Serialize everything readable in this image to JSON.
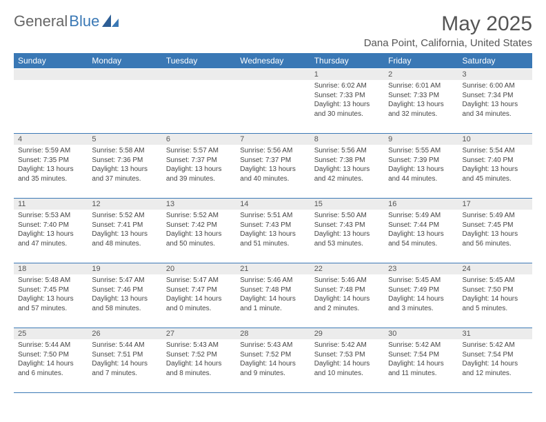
{
  "brand": {
    "part1": "General",
    "part2": "Blue"
  },
  "header": {
    "title": "May 2025",
    "location": "Dana Point, California, United States"
  },
  "style": {
    "accent_color": "#3a78b5",
    "header_bg": "#3a78b5",
    "header_text_color": "#ffffff",
    "daynum_bg": "#ececec",
    "body_text_color": "#444444",
    "table_border_color": "#3a78b5",
    "background_color": "#ffffff",
    "font_family": "Arial",
    "title_fontsize": 30,
    "location_fontsize": 15,
    "cell_fontsize": 10
  },
  "day_labels": [
    "Sunday",
    "Monday",
    "Tuesday",
    "Wednesday",
    "Thursday",
    "Friday",
    "Saturday"
  ],
  "weeks": [
    [
      {
        "n": "",
        "sunrise": "",
        "sunset": "",
        "daylight": ""
      },
      {
        "n": "",
        "sunrise": "",
        "sunset": "",
        "daylight": ""
      },
      {
        "n": "",
        "sunrise": "",
        "sunset": "",
        "daylight": ""
      },
      {
        "n": "",
        "sunrise": "",
        "sunset": "",
        "daylight": ""
      },
      {
        "n": "1",
        "sunrise": "Sunrise: 6:02 AM",
        "sunset": "Sunset: 7:33 PM",
        "daylight": "Daylight: 13 hours and 30 minutes."
      },
      {
        "n": "2",
        "sunrise": "Sunrise: 6:01 AM",
        "sunset": "Sunset: 7:33 PM",
        "daylight": "Daylight: 13 hours and 32 minutes."
      },
      {
        "n": "3",
        "sunrise": "Sunrise: 6:00 AM",
        "sunset": "Sunset: 7:34 PM",
        "daylight": "Daylight: 13 hours and 34 minutes."
      }
    ],
    [
      {
        "n": "4",
        "sunrise": "Sunrise: 5:59 AM",
        "sunset": "Sunset: 7:35 PM",
        "daylight": "Daylight: 13 hours and 35 minutes."
      },
      {
        "n": "5",
        "sunrise": "Sunrise: 5:58 AM",
        "sunset": "Sunset: 7:36 PM",
        "daylight": "Daylight: 13 hours and 37 minutes."
      },
      {
        "n": "6",
        "sunrise": "Sunrise: 5:57 AM",
        "sunset": "Sunset: 7:37 PM",
        "daylight": "Daylight: 13 hours and 39 minutes."
      },
      {
        "n": "7",
        "sunrise": "Sunrise: 5:56 AM",
        "sunset": "Sunset: 7:37 PM",
        "daylight": "Daylight: 13 hours and 40 minutes."
      },
      {
        "n": "8",
        "sunrise": "Sunrise: 5:56 AM",
        "sunset": "Sunset: 7:38 PM",
        "daylight": "Daylight: 13 hours and 42 minutes."
      },
      {
        "n": "9",
        "sunrise": "Sunrise: 5:55 AM",
        "sunset": "Sunset: 7:39 PM",
        "daylight": "Daylight: 13 hours and 44 minutes."
      },
      {
        "n": "10",
        "sunrise": "Sunrise: 5:54 AM",
        "sunset": "Sunset: 7:40 PM",
        "daylight": "Daylight: 13 hours and 45 minutes."
      }
    ],
    [
      {
        "n": "11",
        "sunrise": "Sunrise: 5:53 AM",
        "sunset": "Sunset: 7:40 PM",
        "daylight": "Daylight: 13 hours and 47 minutes."
      },
      {
        "n": "12",
        "sunrise": "Sunrise: 5:52 AM",
        "sunset": "Sunset: 7:41 PM",
        "daylight": "Daylight: 13 hours and 48 minutes."
      },
      {
        "n": "13",
        "sunrise": "Sunrise: 5:52 AM",
        "sunset": "Sunset: 7:42 PM",
        "daylight": "Daylight: 13 hours and 50 minutes."
      },
      {
        "n": "14",
        "sunrise": "Sunrise: 5:51 AM",
        "sunset": "Sunset: 7:43 PM",
        "daylight": "Daylight: 13 hours and 51 minutes."
      },
      {
        "n": "15",
        "sunrise": "Sunrise: 5:50 AM",
        "sunset": "Sunset: 7:43 PM",
        "daylight": "Daylight: 13 hours and 53 minutes."
      },
      {
        "n": "16",
        "sunrise": "Sunrise: 5:49 AM",
        "sunset": "Sunset: 7:44 PM",
        "daylight": "Daylight: 13 hours and 54 minutes."
      },
      {
        "n": "17",
        "sunrise": "Sunrise: 5:49 AM",
        "sunset": "Sunset: 7:45 PM",
        "daylight": "Daylight: 13 hours and 56 minutes."
      }
    ],
    [
      {
        "n": "18",
        "sunrise": "Sunrise: 5:48 AM",
        "sunset": "Sunset: 7:45 PM",
        "daylight": "Daylight: 13 hours and 57 minutes."
      },
      {
        "n": "19",
        "sunrise": "Sunrise: 5:47 AM",
        "sunset": "Sunset: 7:46 PM",
        "daylight": "Daylight: 13 hours and 58 minutes."
      },
      {
        "n": "20",
        "sunrise": "Sunrise: 5:47 AM",
        "sunset": "Sunset: 7:47 PM",
        "daylight": "Daylight: 14 hours and 0 minutes."
      },
      {
        "n": "21",
        "sunrise": "Sunrise: 5:46 AM",
        "sunset": "Sunset: 7:48 PM",
        "daylight": "Daylight: 14 hours and 1 minute."
      },
      {
        "n": "22",
        "sunrise": "Sunrise: 5:46 AM",
        "sunset": "Sunset: 7:48 PM",
        "daylight": "Daylight: 14 hours and 2 minutes."
      },
      {
        "n": "23",
        "sunrise": "Sunrise: 5:45 AM",
        "sunset": "Sunset: 7:49 PM",
        "daylight": "Daylight: 14 hours and 3 minutes."
      },
      {
        "n": "24",
        "sunrise": "Sunrise: 5:45 AM",
        "sunset": "Sunset: 7:50 PM",
        "daylight": "Daylight: 14 hours and 5 minutes."
      }
    ],
    [
      {
        "n": "25",
        "sunrise": "Sunrise: 5:44 AM",
        "sunset": "Sunset: 7:50 PM",
        "daylight": "Daylight: 14 hours and 6 minutes."
      },
      {
        "n": "26",
        "sunrise": "Sunrise: 5:44 AM",
        "sunset": "Sunset: 7:51 PM",
        "daylight": "Daylight: 14 hours and 7 minutes."
      },
      {
        "n": "27",
        "sunrise": "Sunrise: 5:43 AM",
        "sunset": "Sunset: 7:52 PM",
        "daylight": "Daylight: 14 hours and 8 minutes."
      },
      {
        "n": "28",
        "sunrise": "Sunrise: 5:43 AM",
        "sunset": "Sunset: 7:52 PM",
        "daylight": "Daylight: 14 hours and 9 minutes."
      },
      {
        "n": "29",
        "sunrise": "Sunrise: 5:42 AM",
        "sunset": "Sunset: 7:53 PM",
        "daylight": "Daylight: 14 hours and 10 minutes."
      },
      {
        "n": "30",
        "sunrise": "Sunrise: 5:42 AM",
        "sunset": "Sunset: 7:54 PM",
        "daylight": "Daylight: 14 hours and 11 minutes."
      },
      {
        "n": "31",
        "sunrise": "Sunrise: 5:42 AM",
        "sunset": "Sunset: 7:54 PM",
        "daylight": "Daylight: 14 hours and 12 minutes."
      }
    ]
  ]
}
